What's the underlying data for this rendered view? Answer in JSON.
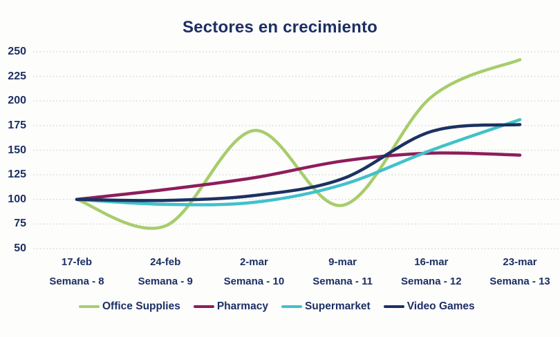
{
  "page": {
    "background": "#fdfdfc",
    "top_edge_bar_color": "#26344e",
    "text_color": "#1c2f63"
  },
  "chart_data": {
    "type": "line",
    "title": "Sectores en crecimiento",
    "xlabel": "",
    "ylabel": "",
    "categories": [
      "17-feb",
      "24-feb",
      "2-mar",
      "9-mar",
      "16-mar",
      "23-mar"
    ],
    "category_sublabels": [
      "Semana - 8",
      "Semana - 9",
      "Semana - 10",
      "Semana - 11",
      "Semana - 12",
      "Semana - 13"
    ],
    "yticks": [
      50,
      75,
      100,
      125,
      150,
      175,
      200,
      225,
      250
    ],
    "ylim": [
      50,
      250
    ],
    "grid": "horizontal-dotted",
    "gridline_color": "#d8d8d5",
    "legend_position": "bottom",
    "series": [
      {
        "name": "Office Supplies",
        "color": "#a7cd6b",
        "values": [
          100,
          73,
          170,
          94,
          204,
          242
        ]
      },
      {
        "name": "Pharmacy",
        "color": "#8e1d5b",
        "values": [
          100,
          110,
          122,
          139,
          147,
          145
        ]
      },
      {
        "name": "Supermarket",
        "color": "#41c1ca",
        "values": [
          100,
          95,
          97,
          115,
          150,
          181
        ]
      },
      {
        "name": "Video Games",
        "color": "#1b3261",
        "values": [
          100,
          99,
          104,
          121,
          169,
          176
        ]
      }
    ]
  }
}
